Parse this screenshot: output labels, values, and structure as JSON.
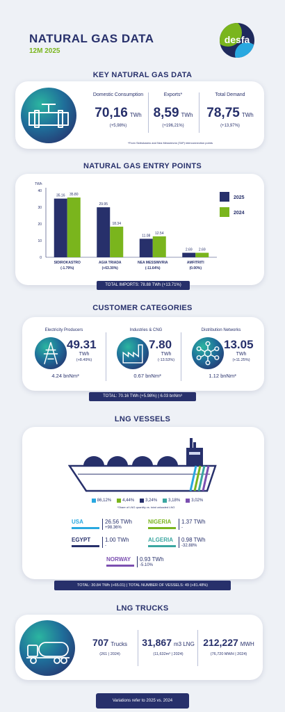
{
  "header": {
    "title": "NATURAL GAS DATA",
    "subtitle": "12M 2025",
    "logo_text": "desfa"
  },
  "key_data": {
    "title": "KEY NATURAL GAS DATA",
    "columns": [
      {
        "label": "Domestic Consumption",
        "value": "70,16",
        "unit": "TWh",
        "change": "(+5,98%)"
      },
      {
        "label": "Exports*",
        "value": "8,59",
        "unit": "TWh",
        "change": "(+196,21%)"
      },
      {
        "label": "Total Demand",
        "value": "78,75",
        "unit": "TWh",
        "change": "(+13,97%)"
      }
    ],
    "footnote": "*From Sidirokastro and Nea Messimvria (TAP) interconnection points"
  },
  "entry_points": {
    "title": "NATURAL GAS ENTRY POINTS",
    "total": "TOTAL IMPORTS: 78.88 TWh (+13.71%)"
  },
  "chart_data": {
    "type": "bar",
    "ylabel": "TWh",
    "ylim": [
      0,
      40
    ],
    "yticks": [
      "0",
      "10",
      "20",
      "30",
      "40"
    ],
    "categories": [
      "SIDIROKASTRO",
      "AGIA TRIADA",
      "NEA MESSIMVRIA",
      "AMFITRITI"
    ],
    "category_changes": [
      "(-1.79%)",
      "(+63.30%)",
      "(-11.64%)",
      "(0.00%)"
    ],
    "series": [
      {
        "name": "2025",
        "color": "#27306b",
        "values": [
          35.16,
          29.95,
          11.08,
          2.69
        ],
        "labels": [
          "35.16",
          "29.95",
          "11.08",
          "2.69"
        ]
      },
      {
        "name": "2024",
        "color": "#7ab51d",
        "values": [
          35.8,
          18.34,
          12.54,
          2.69
        ],
        "labels": [
          "35.80",
          "18.34",
          "12.54",
          "2.69"
        ]
      }
    ],
    "legend_position": "right"
  },
  "customers": {
    "title": "CUSTOMER CATEGORIES",
    "items": [
      {
        "label": "Electricity Producers",
        "value": "49.31",
        "unit": "TWh",
        "change": "(+8.49%)",
        "volume": "4.24 bnNm³",
        "icon": "power-tower-icon"
      },
      {
        "label": "Industries & CNG",
        "value": "7.80",
        "unit": "TWh",
        "change": "(-13.53%)",
        "volume": "0.67 bnNm³",
        "icon": "factory-icon"
      },
      {
        "label": "Distribution Networks",
        "value": "13.05",
        "unit": "TWh",
        "change": "(+11.25%)",
        "volume": "1.12 bnNm³",
        "icon": "network-icon"
      }
    ],
    "total": "TOTAL: 70.16 TWh (+5.98%) | 6.03 bnNm³"
  },
  "lng_vessels": {
    "title": "LNG VESSELS",
    "shares": [
      {
        "value": "86,12%",
        "color": "#29a8e0"
      },
      {
        "value": "4,44%",
        "color": "#7ab51d"
      },
      {
        "value": "3,24%",
        "color": "#27306b"
      },
      {
        "value": "3,18%",
        "color": "#3aa6a0"
      },
      {
        "value": "3,02%",
        "color": "#7b4fb0"
      }
    ],
    "shares_note": "*Share of LNG quantity vs. total unloaded LNG",
    "countries": [
      {
        "name": "USA",
        "value": "26.56 TWh",
        "change": "+98.36%",
        "color": "#29a8e0"
      },
      {
        "name": "NIGERIA",
        "value": "1.37 TWh",
        "change": "-",
        "color": "#7ab51d"
      },
      {
        "name": "EGYPT",
        "value": "1.00 TWh",
        "change": "-",
        "color": "#27306b"
      },
      {
        "name": "ALGERIA",
        "value": "0.98 TWh",
        "change": "-32.88%",
        "color": "#3aa6a0"
      },
      {
        "name": "NORWAY",
        "value": "0.93 TWh",
        "change": "-5.10%",
        "color": "#7b4fb0"
      }
    ],
    "total": "TOTAL: 30.84 TWh (+65.01) | TOTAL NUMBER OF VESSELS: 49 (+81.48%)"
  },
  "lng_trucks": {
    "title": "LNG TRUCKS",
    "items": [
      {
        "value": "707",
        "unit": "Trucks",
        "sub": "(261 | 2024)"
      },
      {
        "value": "31,867",
        "unit": "m3 LNG",
        "sub": "(11,632m³ | 2024)"
      },
      {
        "value": "212,227",
        "unit": "MWH",
        "sub": "(76,720 MWH | 2024)"
      }
    ]
  },
  "footer": {
    "note": "Variations refer to 2025 vs. 2024"
  }
}
